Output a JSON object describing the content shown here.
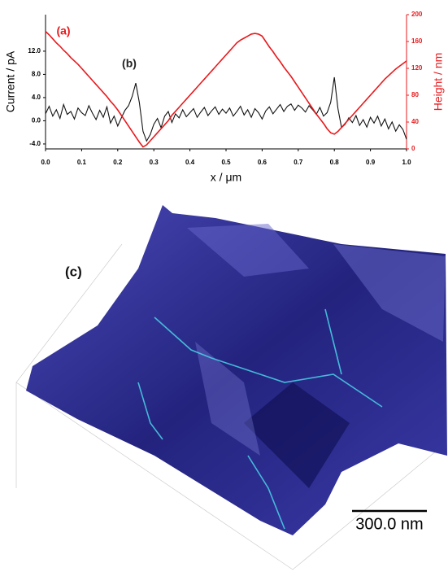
{
  "chart_data": {
    "type": "line",
    "xlabel": "x / μm",
    "ylabel": "Current / pA",
    "y2label": "Height / nm",
    "xlim": [
      0,
      1
    ],
    "xticks": [
      {
        "value": 0,
        "label": "0.0"
      },
      0.1,
      0.2,
      0.3,
      0.4,
      0.5,
      0.6,
      0.7,
      0.8,
      0.9,
      {
        "value": 1,
        "label": "1.0"
      }
    ],
    "ylim": [
      -4.85,
      18.3
    ],
    "yticks": [
      {
        "value": -4,
        "label": "-4.0"
      },
      {
        "value": 0,
        "label": "0.0"
      },
      {
        "value": 4,
        "label": "4.0"
      },
      {
        "value": 8,
        "label": "8.0"
      },
      {
        "value": 12,
        "label": "12.0"
      }
    ],
    "y2lim": [
      0,
      200
    ],
    "y2ticks": [
      0,
      40,
      80,
      120,
      160,
      200
    ],
    "x": [
      0,
      0.01,
      0.02,
      0.03,
      0.04,
      0.05,
      0.06,
      0.07,
      0.08,
      0.09,
      0.1,
      0.11,
      0.12,
      0.13,
      0.14,
      0.15,
      0.16,
      0.17,
      0.18,
      0.19,
      0.2,
      0.21,
      0.22,
      0.23,
      0.24,
      0.25,
      0.26,
      0.27,
      0.28,
      0.29,
      0.3,
      0.31,
      0.32,
      0.33,
      0.34,
      0.35,
      0.36,
      0.37,
      0.38,
      0.39,
      0.4,
      0.41,
      0.42,
      0.43,
      0.44,
      0.45,
      0.46,
      0.47,
      0.48,
      0.49,
      0.5,
      0.51,
      0.52,
      0.53,
      0.54,
      0.55,
      0.56,
      0.57,
      0.58,
      0.59,
      0.6,
      0.61,
      0.62,
      0.63,
      0.64,
      0.65,
      0.66,
      0.67,
      0.68,
      0.69,
      0.7,
      0.71,
      0.72,
      0.73,
      0.74,
      0.75,
      0.76,
      0.77,
      0.78,
      0.79,
      0.8,
      0.81,
      0.82,
      0.83,
      0.84,
      0.85,
      0.86,
      0.87,
      0.88,
      0.89,
      0.9,
      0.91,
      0.92,
      0.93,
      0.94,
      0.95,
      0.96,
      0.97,
      0.98,
      0.99,
      1
    ],
    "series": [
      {
        "name": "(a)",
        "color": "#e8191c",
        "axis": "y2",
        "values": [
          175,
          170,
          164,
          158,
          153,
          147,
          142,
          136,
          131,
          126,
          120,
          114,
          108,
          102,
          96,
          90,
          84,
          78,
          71,
          65,
          58,
          50,
          42,
          34,
          26,
          18,
          10,
          3,
          6,
          12,
          18,
          24,
          30,
          36,
          42,
          50,
          56,
          62,
          68,
          74,
          80,
          86,
          92,
          98,
          104,
          110,
          116,
          122,
          128,
          134,
          140,
          146,
          152,
          158,
          162,
          165,
          168,
          171,
          172,
          171,
          168,
          160,
          152,
          145,
          137,
          130,
          122,
          115,
          108,
          100,
          92,
          84,
          76,
          68,
          60,
          52,
          45,
          38,
          30,
          24,
          22,
          26,
          32,
          38,
          44,
          50,
          56,
          62,
          68,
          74,
          80,
          86,
          92,
          98,
          104,
          109,
          114,
          119,
          123,
          127,
          131
        ]
      },
      {
        "name": "(b)",
        "color": "#111111",
        "values": [
          1.2,
          2.5,
          0.8,
          1.9,
          0.4,
          2.8,
          1.1,
          1.6,
          0.3,
          2.2,
          1.4,
          0.9,
          2.6,
          1.3,
          0.2,
          1.8,
          0.6,
          2.4,
          -0.4,
          0.8,
          -0.9,
          0.5,
          1.8,
          2.6,
          4.2,
          6.5,
          3.1,
          -1.8,
          -3.5,
          -2.4,
          -0.6,
          0.4,
          -1.2,
          0.8,
          1.6,
          -0.3,
          1.2,
          0.5,
          1.9,
          0.7,
          1.4,
          2.1,
          0.6,
          1.5,
          2.3,
          0.9,
          1.7,
          2.4,
          1.1,
          2.0,
          1.3,
          2.2,
          0.8,
          1.6,
          2.5,
          1.0,
          1.9,
          0.6,
          2.1,
          1.4,
          0.3,
          1.7,
          2.4,
          1.2,
          2.0,
          2.8,
          1.6,
          2.5,
          2.9,
          1.8,
          2.7,
          2.2,
          1.5,
          2.6,
          1.9,
          1.1,
          2.3,
          0.8,
          1.4,
          3.2,
          7.5,
          2.1,
          -1.2,
          -0.6,
          0.5,
          -0.3,
          0.9,
          -0.8,
          0.2,
          -1.1,
          0.6,
          -0.4,
          0.8,
          -0.9,
          0.3,
          -1.4,
          -0.2,
          -1.8,
          -0.7,
          -1.5,
          -3.2
        ]
      }
    ]
  },
  "image": {
    "label": "(c)",
    "scale_bar": "300.0 nm"
  }
}
